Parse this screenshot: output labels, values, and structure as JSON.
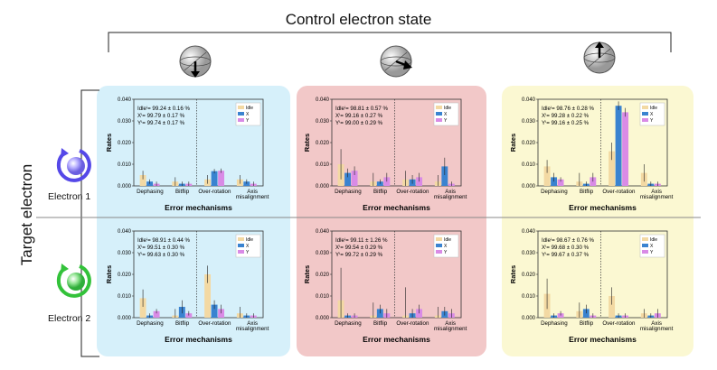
{
  "figure": {
    "title": "Control electron state",
    "row_axis_label": "Target electron",
    "row_labels": [
      "Electron 1",
      "Electron 2"
    ],
    "column_colors": [
      "#d6f0fa",
      "#f2c8c8",
      "#fbf8d2"
    ],
    "series_colors": {
      "Idle": "#f3d9a3",
      "X": "#3a83d0",
      "Y": "#d98be6"
    },
    "state_icons": [
      "bloch-sphere-down-icon",
      "bloch-sphere-right-icon",
      "bloch-sphere-up-icon"
    ]
  },
  "chart_data": [
    {
      "type": "bar",
      "row": 0,
      "col": 0,
      "categories": [
        "Dephasing",
        "Bitflip",
        "Over-rotation",
        "Axis misalignment"
      ],
      "xlabel": "Error mechanisms",
      "ylabel": "Rates",
      "ylim": [
        0,
        0.04
      ],
      "yticks": [
        "0.000",
        "0.010",
        "0.020",
        "0.030",
        "0.040"
      ],
      "legend": [
        "Idle",
        "X",
        "Y"
      ],
      "legend_position": "top-right",
      "fidelities": [
        "Idleⁱ= 99.24 ± 0.16 %",
        "Xⁱ= 99.79 ± 0.17 %",
        "Yⁱ= 99.74 ± 0.17 %"
      ],
      "series": [
        {
          "name": "Idle",
          "values": [
            0.005,
            0.002,
            0.003,
            0.003
          ],
          "errors": [
            0.002,
            0.002,
            0.002,
            0.002
          ]
        },
        {
          "name": "X",
          "values": [
            0.002,
            0.001,
            0.0068,
            0.002
          ],
          "errors": [
            0.001,
            0.001,
            0.001,
            0.001
          ]
        },
        {
          "name": "Y",
          "values": [
            0.001,
            0.001,
            0.007,
            0.001
          ],
          "errors": [
            0.001,
            0.001,
            0.001,
            0.001
          ]
        }
      ]
    },
    {
      "type": "bar",
      "row": 0,
      "col": 1,
      "categories": [
        "Dephasing",
        "Bitflip",
        "Over-rotation",
        "Axis misalignment"
      ],
      "xlabel": "Error mechanisms",
      "ylabel": "Rates",
      "ylim": [
        0,
        0.04
      ],
      "yticks": [
        "0.000",
        "0.010",
        "0.020",
        "0.030",
        "0.040"
      ],
      "legend": [
        "Idle",
        "X",
        "Y"
      ],
      "legend_position": "top-right",
      "fidelities": [
        "Idleⁱ= 98.81 ± 0.57 %",
        "Xⁱ= 99.16 ± 0.27 %",
        "Yⁱ= 99.00 ± 0.29 %"
      ],
      "series": [
        {
          "name": "Idle",
          "values": [
            0.01,
            0.002,
            0.003,
            0.002
          ],
          "errors": [
            0.007,
            0.004,
            0.004,
            0.003
          ]
        },
        {
          "name": "X",
          "values": [
            0.006,
            0.002,
            0.003,
            0.009
          ],
          "errors": [
            0.002,
            0.001,
            0.002,
            0.004
          ]
        },
        {
          "name": "Y",
          "values": [
            0.007,
            0.004,
            0.004,
            0.001
          ],
          "errors": [
            0.002,
            0.002,
            0.002,
            0.001
          ]
        }
      ]
    },
    {
      "type": "bar",
      "row": 0,
      "col": 2,
      "categories": [
        "Dephasing",
        "Bitflip",
        "Over-rotation",
        "Axis misalignment"
      ],
      "xlabel": "Error mechanisms",
      "ylabel": "Rates",
      "ylim": [
        0,
        0.04
      ],
      "yticks": [
        "0.000",
        "0.010",
        "0.020",
        "0.030",
        "0.040"
      ],
      "legend": [
        "Idle",
        "X",
        "Y"
      ],
      "legend_position": "top-right",
      "fidelities": [
        "Idleⁱ= 98.76 ± 0.28 %",
        "Xⁱ= 99.28 ± 0.22 %",
        "Yⁱ= 99.16 ± 0.25 %"
      ],
      "series": [
        {
          "name": "Idle",
          "values": [
            0.009,
            0.002,
            0.016,
            0.006
          ],
          "errors": [
            0.003,
            0.004,
            0.004,
            0.004
          ]
        },
        {
          "name": "X",
          "values": [
            0.004,
            0.001,
            0.037,
            0.001
          ],
          "errors": [
            0.002,
            0.001,
            0.002,
            0.001
          ]
        },
        {
          "name": "Y",
          "values": [
            0.003,
            0.004,
            0.034,
            0.001
          ],
          "errors": [
            0.001,
            0.002,
            0.002,
            0.001
          ]
        }
      ]
    },
    {
      "type": "bar",
      "row": 1,
      "col": 0,
      "categories": [
        "Dephasing",
        "Bitflip",
        "Over-rotation",
        "Axis misalignment"
      ],
      "xlabel": "Error mechanisms",
      "ylabel": "Rates",
      "ylim": [
        0,
        0.04
      ],
      "yticks": [
        "0.000",
        "0.010",
        "0.020",
        "0.030",
        "0.040"
      ],
      "legend": [
        "Idle",
        "X",
        "Y"
      ],
      "legend_position": "top-right",
      "fidelities": [
        "Idleⁱ= 98.91 ± 0.44 %",
        "Xⁱ= 99.51 ± 0.30 %",
        "Yⁱ= 99.63 ± 0.30 %"
      ],
      "series": [
        {
          "name": "Idle",
          "values": [
            0.009,
            0.001,
            0.02,
            0.002
          ],
          "errors": [
            0.004,
            0.003,
            0.004,
            0.003
          ]
        },
        {
          "name": "X",
          "values": [
            0.001,
            0.005,
            0.006,
            0.001
          ],
          "errors": [
            0.001,
            0.003,
            0.002,
            0.001
          ]
        },
        {
          "name": "Y",
          "values": [
            0.003,
            0.002,
            0.004,
            0.001
          ],
          "errors": [
            0.001,
            0.001,
            0.002,
            0.001
          ]
        }
      ]
    },
    {
      "type": "bar",
      "row": 1,
      "col": 1,
      "categories": [
        "Dephasing",
        "Bitflip",
        "Over-rotation",
        "Axis misalignment"
      ],
      "xlabel": "Error mechanisms",
      "ylabel": "Rates",
      "ylim": [
        0,
        0.04
      ],
      "yticks": [
        "0.000",
        "0.010",
        "0.020",
        "0.030",
        "0.040"
      ],
      "legend": [
        "Idle",
        "X",
        "Y"
      ],
      "legend_position": "top-right",
      "fidelities": [
        "Idleⁱ= 99.11 ± 1.26 %",
        "Xⁱ= 99.54 ± 0.29 %",
        "Yⁱ= 99.72 ± 0.29 %"
      ],
      "series": [
        {
          "name": "Idle",
          "values": [
            0.008,
            0.001,
            0.001,
            0.001
          ],
          "errors": [
            0.015,
            0.006,
            0.013,
            0.004
          ]
        },
        {
          "name": "X",
          "values": [
            0.001,
            0.004,
            0.002,
            0.003
          ],
          "errors": [
            0.001,
            0.002,
            0.002,
            0.002
          ]
        },
        {
          "name": "Y",
          "values": [
            0.001,
            0.002,
            0.004,
            0.002
          ],
          "errors": [
            0.001,
            0.002,
            0.002,
            0.002
          ]
        }
      ]
    },
    {
      "type": "bar",
      "row": 1,
      "col": 2,
      "categories": [
        "Dephasing",
        "Bitflip",
        "Over-rotation",
        "Axis misalignment"
      ],
      "xlabel": "Error mechanisms",
      "ylabel": "Rates",
      "ylim": [
        0,
        0.04
      ],
      "yticks": [
        "0.000",
        "0.010",
        "0.020",
        "0.030",
        "0.040"
      ],
      "legend": [
        "Idle",
        "X",
        "Y"
      ],
      "legend_position": "top-right",
      "fidelities": [
        "Idleⁱ= 98.67 ± 0.76 %",
        "Xⁱ= 99.68 ± 0.30 %",
        "Yⁱ= 99.67 ± 0.37 %"
      ],
      "series": [
        {
          "name": "Idle",
          "values": [
            0.011,
            0.003,
            0.01,
            0.002
          ],
          "errors": [
            0.007,
            0.004,
            0.004,
            0.002
          ]
        },
        {
          "name": "X",
          "values": [
            0.001,
            0.004,
            0.001,
            0.001
          ],
          "errors": [
            0.001,
            0.002,
            0.001,
            0.001
          ]
        },
        {
          "name": "Y",
          "values": [
            0.002,
            0.001,
            0.001,
            0.002
          ],
          "errors": [
            0.001,
            0.001,
            0.001,
            0.002
          ]
        }
      ]
    }
  ]
}
